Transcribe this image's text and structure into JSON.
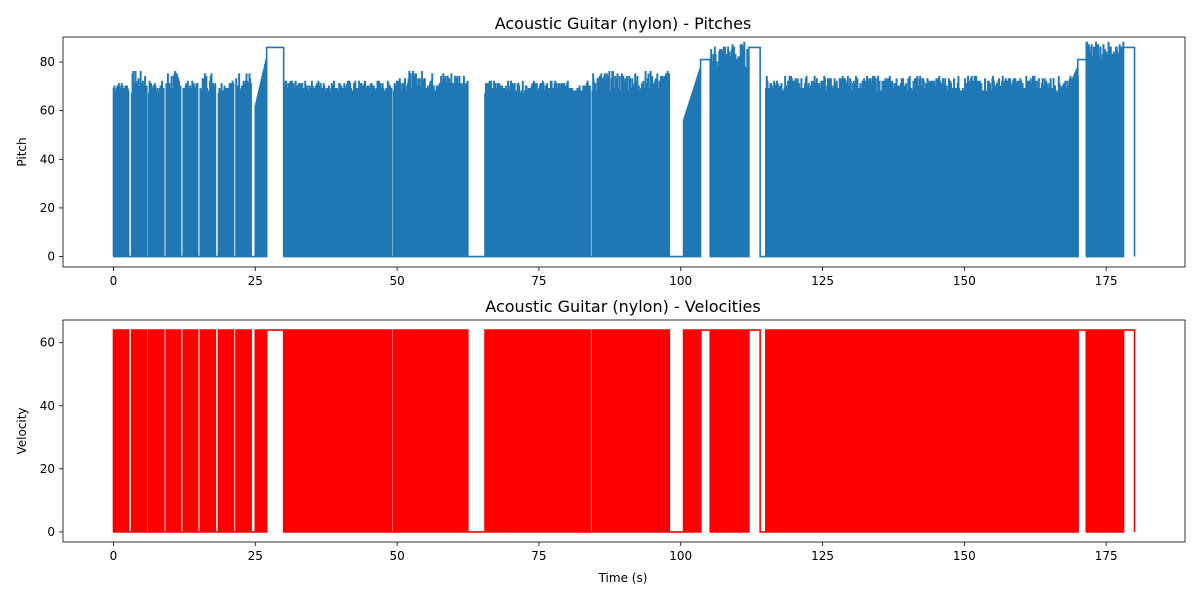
{
  "chart_data": [
    {
      "type": "line",
      "title": "Acoustic Guitar (nylon) - Pitches",
      "xlabel": "",
      "ylabel": "Pitch",
      "xlim": [
        -8.9,
        188.9
      ],
      "ylim": [
        -4.3,
        90.3
      ],
      "xticks": [
        0,
        25,
        50,
        75,
        100,
        125,
        150,
        175
      ],
      "yticks": [
        0,
        20,
        40,
        60,
        80
      ],
      "color": "#1f77b4",
      "segments": [
        {
          "kind": "dense",
          "x0": 0.0,
          "x1": 2.6,
          "base": 67,
          "peak": 72
        },
        {
          "kind": "dense",
          "x0": 3.2,
          "x1": 5.8,
          "base": 67,
          "peak": 76
        },
        {
          "kind": "dense",
          "x0": 6.2,
          "x1": 8.9,
          "base": 67,
          "peak": 72
        },
        {
          "kind": "dense",
          "x0": 9.3,
          "x1": 11.9,
          "base": 67,
          "peak": 76
        },
        {
          "kind": "dense",
          "x0": 12.3,
          "x1": 14.9,
          "base": 67,
          "peak": 72
        },
        {
          "kind": "dense",
          "x0": 15.3,
          "x1": 17.9,
          "base": 67,
          "peak": 76
        },
        {
          "kind": "dense",
          "x0": 18.5,
          "x1": 21.2,
          "base": 67,
          "peak": 72
        },
        {
          "kind": "dense",
          "x0": 21.6,
          "x1": 24.3,
          "base": 67,
          "peak": 76
        },
        {
          "kind": "ramp",
          "x0": 25.0,
          "x1": 27.0,
          "from": 62,
          "to": 82
        },
        {
          "kind": "hold",
          "x0": 27.0,
          "x1": 30.0,
          "value": 86
        },
        {
          "kind": "dense",
          "x0": 30.0,
          "x1": 49.0,
          "base": 67,
          "peak": 72
        },
        {
          "kind": "dense",
          "x0": 49.4,
          "x1": 62.5,
          "base": 67,
          "peak": 76
        },
        {
          "kind": "dense",
          "x0": 65.5,
          "x1": 84.0,
          "base": 67,
          "peak": 72
        },
        {
          "kind": "dense",
          "x0": 84.4,
          "x1": 98.0,
          "base": 67,
          "peak": 76
        },
        {
          "kind": "ramp",
          "x0": 100.5,
          "x1": 103.5,
          "from": 56,
          "to": 78
        },
        {
          "kind": "hold",
          "x0": 103.5,
          "x1": 105.2,
          "value": 81
        },
        {
          "kind": "dense",
          "x0": 105.2,
          "x1": 112.0,
          "base": 76,
          "peak": 88
        },
        {
          "kind": "hold",
          "x0": 112.0,
          "x1": 114.0,
          "value": 86
        },
        {
          "kind": "dense",
          "x0": 115.0,
          "x1": 170.0,
          "base": 67,
          "peak": 74
        },
        {
          "kind": "ramp",
          "x0": 167.0,
          "x1": 170.0,
          "from": 62,
          "to": 78
        },
        {
          "kind": "hold",
          "x0": 170.0,
          "x1": 171.5,
          "value": 81
        },
        {
          "kind": "dense",
          "x0": 171.5,
          "x1": 178.0,
          "base": 81,
          "peak": 88
        },
        {
          "kind": "hold",
          "x0": 178.0,
          "x1": 180.0,
          "value": 86
        }
      ]
    },
    {
      "type": "line",
      "title": "Acoustic Guitar (nylon) - Velocities",
      "xlabel": "Time (s)",
      "ylabel": "Velocity",
      "xlim": [
        -8.9,
        188.9
      ],
      "ylim": [
        -3.2,
        67.2
      ],
      "xticks": [
        0,
        25,
        50,
        75,
        100,
        125,
        150,
        175
      ],
      "yticks": [
        0,
        20,
        40,
        60
      ],
      "color": "#ff0000",
      "segments": [
        {
          "kind": "dense",
          "x0": 0.0,
          "x1": 2.6,
          "base": 64,
          "peak": 64
        },
        {
          "kind": "dense",
          "x0": 3.2,
          "x1": 5.8,
          "base": 64,
          "peak": 64
        },
        {
          "kind": "dense",
          "x0": 6.2,
          "x1": 8.9,
          "base": 64,
          "peak": 64
        },
        {
          "kind": "dense",
          "x0": 9.3,
          "x1": 11.9,
          "base": 64,
          "peak": 64
        },
        {
          "kind": "dense",
          "x0": 12.3,
          "x1": 14.9,
          "base": 64,
          "peak": 64
        },
        {
          "kind": "dense",
          "x0": 15.3,
          "x1": 17.9,
          "base": 64,
          "peak": 64
        },
        {
          "kind": "dense",
          "x0": 18.5,
          "x1": 21.2,
          "base": 64,
          "peak": 64
        },
        {
          "kind": "dense",
          "x0": 21.6,
          "x1": 24.3,
          "base": 64,
          "peak": 64
        },
        {
          "kind": "dense",
          "x0": 25.0,
          "x1": 27.0,
          "base": 64,
          "peak": 64
        },
        {
          "kind": "hold",
          "x0": 27.0,
          "x1": 30.0,
          "value": 64
        },
        {
          "kind": "dense",
          "x0": 30.0,
          "x1": 49.0,
          "base": 64,
          "peak": 64
        },
        {
          "kind": "dense",
          "x0": 49.4,
          "x1": 62.5,
          "base": 64,
          "peak": 64
        },
        {
          "kind": "dense",
          "x0": 65.5,
          "x1": 84.0,
          "base": 64,
          "peak": 64
        },
        {
          "kind": "dense",
          "x0": 84.4,
          "x1": 98.0,
          "base": 64,
          "peak": 64
        },
        {
          "kind": "dense",
          "x0": 100.5,
          "x1": 103.5,
          "base": 64,
          "peak": 64
        },
        {
          "kind": "hold",
          "x0": 103.5,
          "x1": 105.2,
          "value": 64
        },
        {
          "kind": "dense",
          "x0": 105.2,
          "x1": 112.0,
          "base": 64,
          "peak": 64
        },
        {
          "kind": "hold",
          "x0": 112.0,
          "x1": 114.0,
          "value": 64
        },
        {
          "kind": "dense",
          "x0": 115.0,
          "x1": 170.0,
          "base": 64,
          "peak": 64
        },
        {
          "kind": "hold",
          "x0": 170.0,
          "x1": 171.5,
          "value": 64
        },
        {
          "kind": "dense",
          "x0": 171.5,
          "x1": 178.0,
          "base": 64,
          "peak": 64
        },
        {
          "kind": "hold",
          "x0": 178.0,
          "x1": 180.0,
          "value": 64
        }
      ]
    }
  ]
}
